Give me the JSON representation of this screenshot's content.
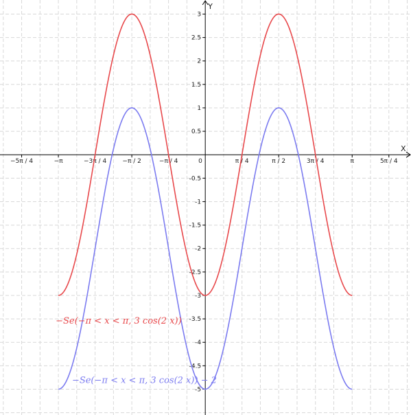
{
  "chart_data": {
    "type": "line",
    "title": "",
    "xlabel": "X",
    "ylabel": "Y",
    "xlim": [
      -4.39,
      4.4
    ],
    "ylim": [
      -5.55,
      3.3
    ],
    "grid": true,
    "x_ticks": [
      {
        "value": -3.927,
        "label": "−5π / 4"
      },
      {
        "value": -3.1416,
        "label": "−π"
      },
      {
        "value": -2.3562,
        "label": "−3π / 4"
      },
      {
        "value": -1.5708,
        "label": "−π / 2"
      },
      {
        "value": -0.7854,
        "label": "−π / 4"
      },
      {
        "value": 0.7854,
        "label": "π / 4"
      },
      {
        "value": 1.5708,
        "label": "π / 2"
      },
      {
        "value": 2.3562,
        "label": "3π / 4"
      },
      {
        "value": 3.1416,
        "label": "π"
      },
      {
        "value": 3.927,
        "label": "5π / 4"
      }
    ],
    "origin_label": "0",
    "y_ticks": [
      {
        "value": 3,
        "label": "3"
      },
      {
        "value": 2.5,
        "label": "2.5"
      },
      {
        "value": 2,
        "label": "2"
      },
      {
        "value": 1.5,
        "label": "1.5"
      },
      {
        "value": 1,
        "label": "1"
      },
      {
        "value": 0.5,
        "label": "0.5"
      },
      {
        "value": -0.5,
        "label": "-0.5"
      },
      {
        "value": -1,
        "label": "-1"
      },
      {
        "value": -1.5,
        "label": "-1.5"
      },
      {
        "value": -2,
        "label": "-2"
      },
      {
        "value": -2.5,
        "label": "-2.5"
      },
      {
        "value": -3,
        "label": "-3"
      },
      {
        "value": -3.5,
        "label": "-3.5"
      },
      {
        "value": -4,
        "label": "-4"
      },
      {
        "value": -4.5,
        "label": "-4.5"
      },
      {
        "value": -5,
        "label": "-5"
      }
    ],
    "series": [
      {
        "label": "−Se(−π < x < π, 3 cos(2 x))",
        "color": "#e8484b",
        "formula": {
          "amplitude": -3,
          "frequency": 2,
          "offset": 0
        },
        "domain": [
          -3.1416,
          3.1416
        ],
        "label_at": {
          "x": -3.2,
          "y": -3.6
        }
      },
      {
        "label": "−Se(−π < x < π, 3  cos(2 x)) − 2",
        "color": "#7b7bf0",
        "formula": {
          "amplitude": -3,
          "frequency": 2,
          "offset": -2
        },
        "domain": [
          -3.1416,
          3.1416
        ],
        "label_at": {
          "x": -2.85,
          "y": -4.87
        }
      }
    ]
  }
}
